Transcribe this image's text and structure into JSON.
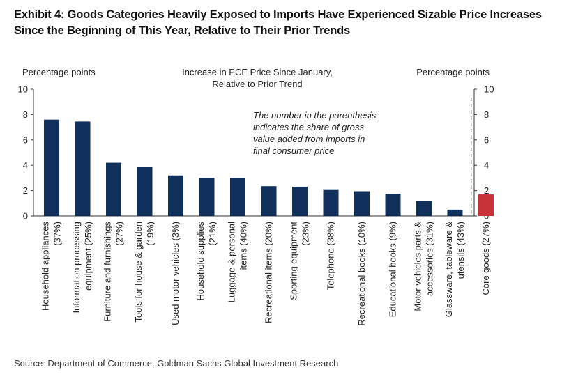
{
  "title_line1": "Exhibit 4: Goods Categories Heavily Exposed to Imports Have Experienced Sizable Price Increases",
  "title_line2": "Since the Beginning of This Year, Relative to Their Prior Trends",
  "source": "Source: Department of Commerce, Goldman Sachs Global Investment Research",
  "annotation_lines": [
    "The number in the parenthesis",
    "indicates the share of gross",
    "value added from imports in",
    "final consumer price"
  ],
  "colors": {
    "main_bar": "#12305c",
    "highlight_bar": "#c8333a",
    "axis": "#333333",
    "divider": "#888888"
  },
  "chart_data": {
    "type": "bar",
    "title": "Increase in PCE Price Since January, Relative to Prior Trend",
    "title_lines": [
      "Increase in PCE Price Since January,",
      "Relative to Prior Trend"
    ],
    "ylabel_left": "Percentage points",
    "ylabel_right": "Percentage points",
    "ylim": [
      0,
      10
    ],
    "yticks": [
      0,
      2,
      4,
      6,
      8,
      10
    ],
    "grid": false,
    "categories": [
      [
        "Household appliances",
        "(37%)"
      ],
      [
        "Information processing",
        "equipment (25%)"
      ],
      [
        "Furniture and furnishings",
        "(27%)"
      ],
      [
        "Tools for house & garden",
        "(19%)"
      ],
      [
        "Used motor vehicles (3%)"
      ],
      [
        "Household supplies",
        "(21%)"
      ],
      [
        "Luggage & personal",
        "items (40%)"
      ],
      [
        "Recreational items (20%)"
      ],
      [
        "Sporting equipment",
        "(23%)"
      ],
      [
        "Telephone (38%)"
      ],
      [
        "Recreational books (10%)"
      ],
      [
        "Educational books (9%)"
      ],
      [
        "Motor vehicles parts &",
        "accessories (31%)"
      ],
      [
        "Glassware, tableware &",
        "utensils (43%)"
      ],
      [
        "Core goods (27%)"
      ]
    ],
    "values": [
      7.6,
      7.45,
      4.2,
      3.85,
      3.2,
      3.0,
      3.0,
      2.35,
      2.3,
      2.05,
      1.95,
      1.75,
      1.2,
      0.5,
      1.7
    ],
    "highlight_index": 14
  }
}
